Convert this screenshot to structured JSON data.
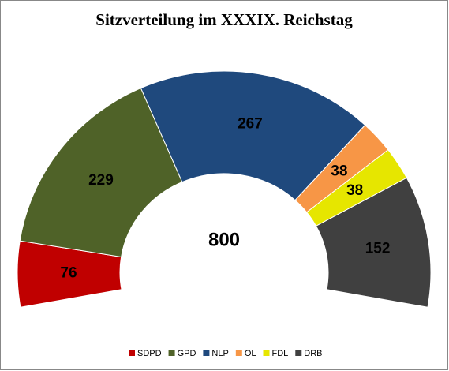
{
  "chart_data": {
    "type": "half-donut",
    "title": "Sitzverteilung im XXXIX. Reichstag",
    "categories": [
      "SDPD",
      "GPD",
      "NLP",
      "OL",
      "FDL",
      "DRB"
    ],
    "values": [
      76,
      229,
      267,
      38,
      38,
      152
    ],
    "colors": [
      "#c00000",
      "#4f6228",
      "#1f497d",
      "#f79646",
      "#e6e600",
      "#404040"
    ],
    "total": 800
  }
}
